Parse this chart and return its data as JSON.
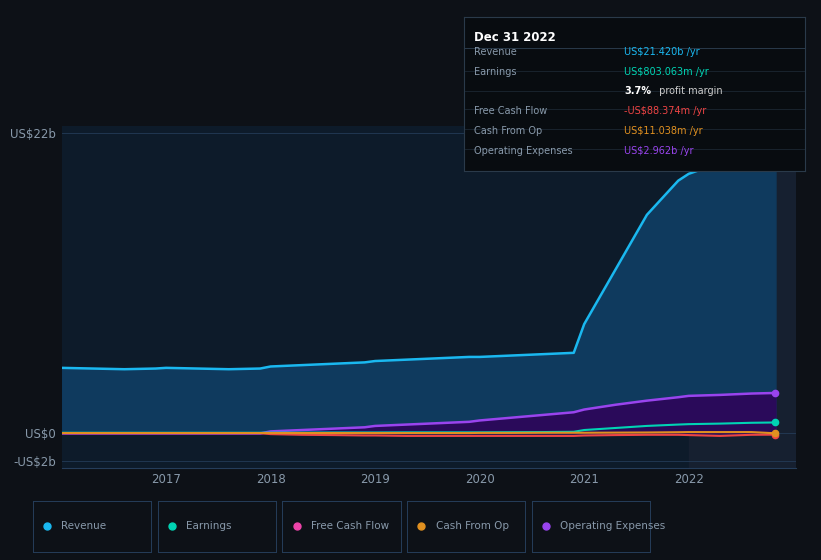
{
  "background_color": "#0d1117",
  "plot_bg_color": "#0d1b2a",
  "grid_color": "#253d5a",
  "text_color": "#8899aa",
  "title_color": "#ffffff",
  "years": [
    2016.0,
    2016.3,
    2016.6,
    2016.9,
    2017.0,
    2017.3,
    2017.6,
    2017.9,
    2018.0,
    2018.3,
    2018.6,
    2018.9,
    2019.0,
    2019.3,
    2019.6,
    2019.9,
    2020.0,
    2020.3,
    2020.6,
    2020.9,
    2021.0,
    2021.3,
    2021.6,
    2021.9,
    2022.0,
    2022.3,
    2022.6,
    2022.83
  ],
  "revenue": [
    4.8,
    4.75,
    4.7,
    4.75,
    4.8,
    4.75,
    4.7,
    4.75,
    4.9,
    5.0,
    5.1,
    5.2,
    5.3,
    5.4,
    5.5,
    5.6,
    5.6,
    5.7,
    5.8,
    5.9,
    8.0,
    12.0,
    16.0,
    18.5,
    19.0,
    19.8,
    20.8,
    21.42
  ],
  "earnings": [
    0.05,
    0.05,
    0.05,
    0.05,
    0.05,
    0.05,
    0.05,
    0.05,
    0.06,
    0.06,
    0.07,
    0.07,
    0.07,
    0.08,
    0.08,
    0.08,
    0.08,
    0.09,
    0.1,
    0.12,
    0.25,
    0.4,
    0.55,
    0.65,
    0.68,
    0.72,
    0.78,
    0.803
  ],
  "free_cash_flow": [
    0.02,
    0.02,
    0.02,
    0.02,
    0.02,
    0.02,
    0.02,
    0.02,
    -0.05,
    -0.1,
    -0.12,
    -0.15,
    -0.15,
    -0.18,
    -0.18,
    -0.18,
    -0.18,
    -0.18,
    -0.18,
    -0.18,
    -0.15,
    -0.12,
    -0.1,
    -0.1,
    -0.12,
    -0.18,
    -0.1,
    -0.088
  ],
  "cash_from_op": [
    0.03,
    0.03,
    0.03,
    0.03,
    0.03,
    0.03,
    0.03,
    0.03,
    0.03,
    0.03,
    0.03,
    0.03,
    0.03,
    0.03,
    0.03,
    0.03,
    0.04,
    0.04,
    0.05,
    0.05,
    0.05,
    0.06,
    0.07,
    0.09,
    0.1,
    0.1,
    0.1,
    0.011
  ],
  "op_expenses": [
    0.0,
    0.0,
    0.0,
    0.0,
    0.0,
    0.0,
    0.0,
    0.0,
    0.15,
    0.25,
    0.35,
    0.45,
    0.55,
    0.65,
    0.75,
    0.85,
    0.95,
    1.15,
    1.35,
    1.55,
    1.75,
    2.1,
    2.4,
    2.65,
    2.75,
    2.82,
    2.92,
    2.962
  ],
  "ylim": [
    -2.5,
    22.5
  ],
  "yticks": [
    -2,
    0,
    22
  ],
  "ytick_labels": [
    "-US$2b",
    "US$0",
    "US$22b"
  ],
  "xticks": [
    2017,
    2018,
    2019,
    2020,
    2021,
    2022
  ],
  "revenue_color": "#1ab8f0",
  "revenue_fill_color": "#0f3a5e",
  "earnings_color": "#00d4b4",
  "free_cash_flow_color": "#ee4444",
  "cash_from_op_color": "#e09020",
  "op_expenses_color": "#9944ee",
  "op_expenses_fill_color": "#2a0a5a",
  "info_box": {
    "title": "Dec 31 2022",
    "title_color": "#ffffff",
    "bg_color": "#080c10",
    "border_color": "#2a3a4a",
    "rows": [
      {
        "label": "Revenue",
        "value": "US$21.420b /yr",
        "value_color": "#1ab8f0"
      },
      {
        "label": "Earnings",
        "value": "US$803.063m /yr",
        "value_color": "#00d4b4"
      },
      {
        "label": "",
        "value": "3.7% profit margin",
        "value_color": "#cccccc",
        "bold_prefix": "3.7%"
      },
      {
        "label": "Free Cash Flow",
        "value": "-US$88.374m /yr",
        "value_color": "#ee4444"
      },
      {
        "label": "Cash From Op",
        "value": "US$11.038m /yr",
        "value_color": "#e09020"
      },
      {
        "label": "Operating Expenses",
        "value": "US$2.962b /yr",
        "value_color": "#9944ee"
      }
    ]
  },
  "legend_entries": [
    {
      "label": "Revenue",
      "color": "#1ab8f0"
    },
    {
      "label": "Earnings",
      "color": "#00d4b4"
    },
    {
      "label": "Free Cash Flow",
      "color": "#ee44aa"
    },
    {
      "label": "Cash From Op",
      "color": "#e09020"
    },
    {
      "label": "Operating Expenses",
      "color": "#9944ee"
    }
  ],
  "highlight_x_start": 2022.0,
  "highlight_color": "#162030"
}
